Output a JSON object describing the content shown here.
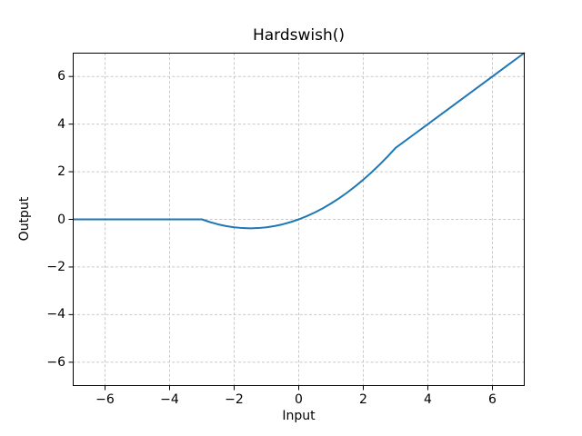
{
  "figure": {
    "background_color": "#ffffff",
    "spine_color": "#000000",
    "tick_color": "#000000",
    "text_color": "#000000"
  },
  "chart_data": {
    "type": "line",
    "title": "Hardswish()",
    "xlabel": "Input",
    "ylabel": "Output",
    "xlim": [
      -7,
      7
    ],
    "ylim": [
      -7,
      7
    ],
    "xticks": [
      -6,
      -4,
      -2,
      0,
      2,
      4,
      6
    ],
    "yticks": [
      -6,
      -4,
      -2,
      0,
      2,
      4,
      6
    ],
    "grid": true,
    "grid_color": "#c9c9c9",
    "grid_style": "dashed",
    "legend": false,
    "series": [
      {
        "name": "Hardswish",
        "color": "#1f77b4",
        "line_width": 2,
        "x": [
          -7,
          -6,
          -5,
          -4,
          -3.5,
          -3,
          -2.75,
          -2.5,
          -2.25,
          -2,
          -1.75,
          -1.5,
          -1.25,
          -1,
          -0.75,
          -0.5,
          -0.25,
          0,
          0.25,
          0.5,
          0.75,
          1,
          1.25,
          1.5,
          1.75,
          2,
          2.25,
          2.5,
          2.75,
          3,
          3.5,
          4,
          4.5,
          5,
          5.5,
          6,
          6.5,
          7
        ],
        "y": [
          0,
          0,
          0,
          0,
          0,
          0,
          -0.1146,
          -0.2083,
          -0.2813,
          -0.3333,
          -0.3646,
          -0.375,
          -0.3646,
          -0.3333,
          -0.2813,
          -0.2083,
          -0.1146,
          0,
          0.1354,
          0.2917,
          0.4688,
          0.6667,
          0.8854,
          1.125,
          1.3854,
          1.6667,
          1.9688,
          2.2917,
          2.6354,
          3,
          3.5,
          4,
          4.5,
          5,
          5.5,
          6,
          6.5,
          7
        ]
      }
    ]
  }
}
